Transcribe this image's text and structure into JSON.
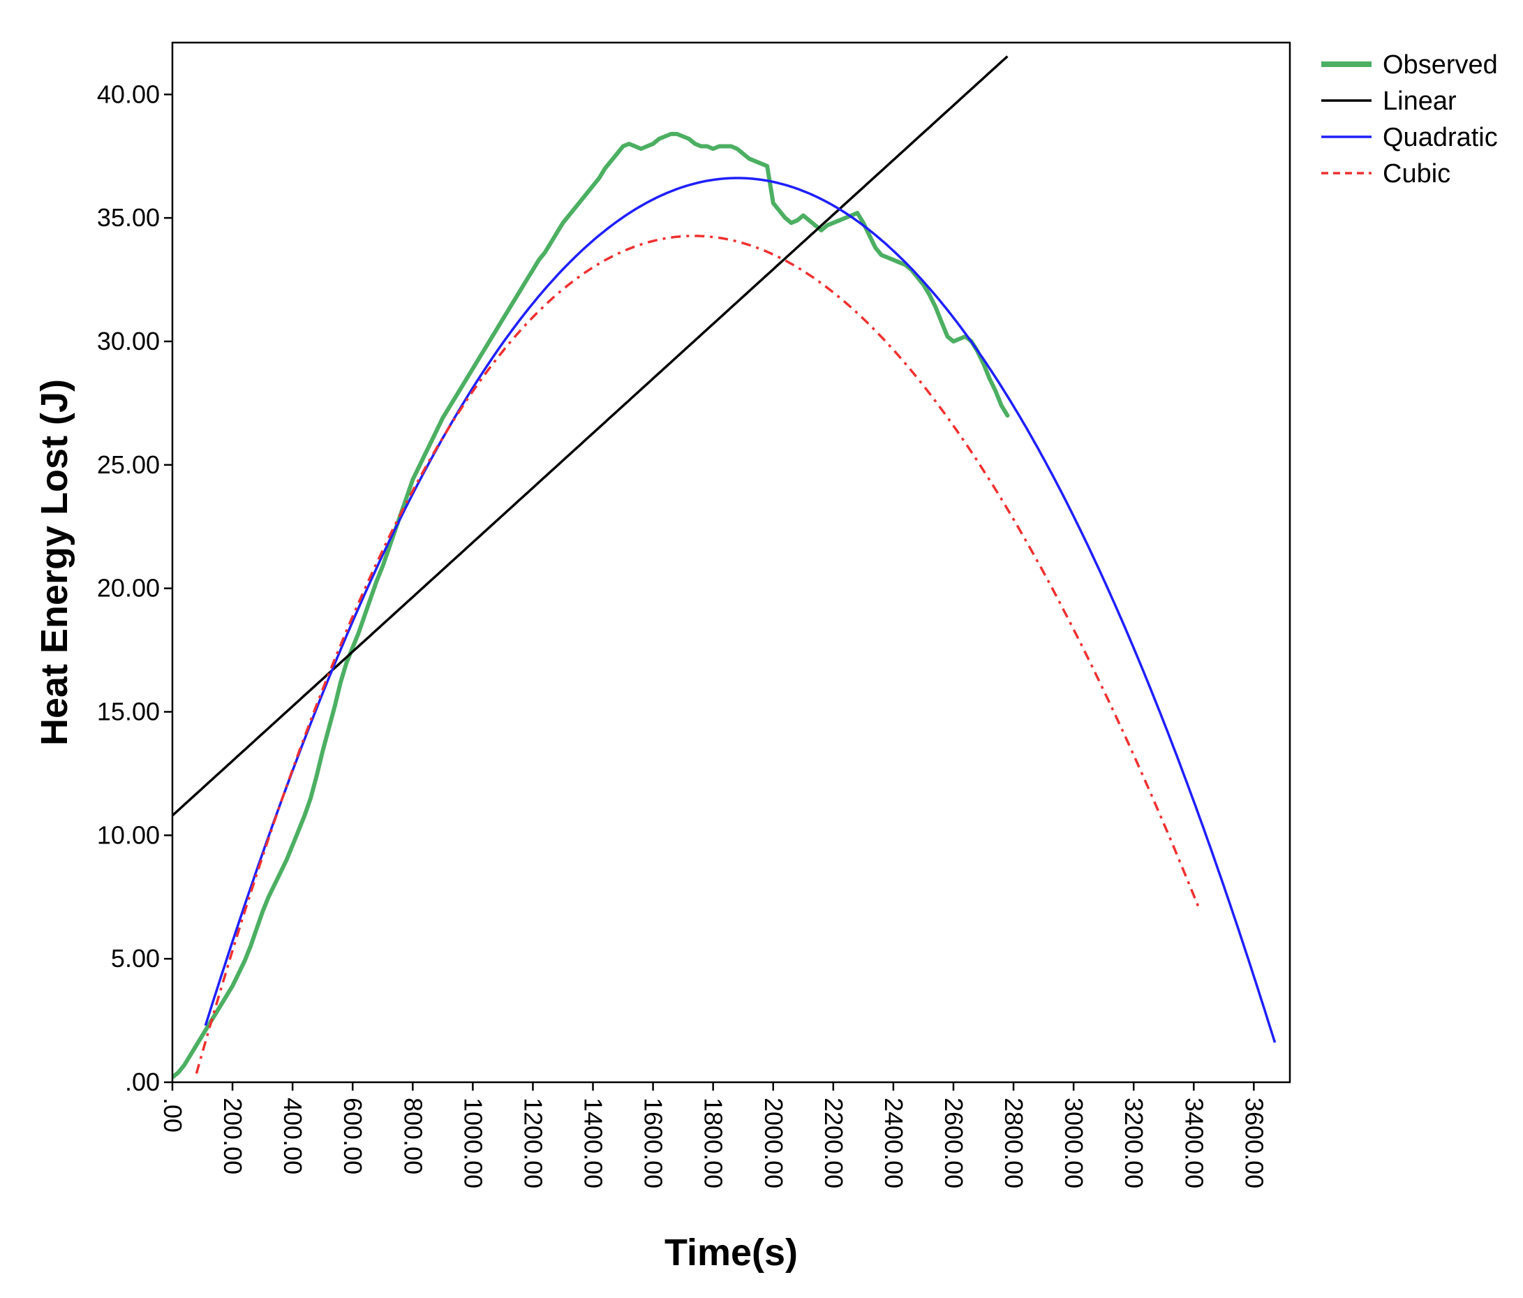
{
  "chart_data": {
    "type": "line",
    "title": "",
    "xlabel": "Time(s)",
    "ylabel": "Heat Energy Lost (J)",
    "xlim": [
      0,
      3720
    ],
    "ylim": [
      0,
      42.1
    ],
    "x_ticks": [
      {
        "value": 0,
        "label": ".00"
      },
      {
        "value": 200,
        "label": "200.00"
      },
      {
        "value": 400,
        "label": "400.00"
      },
      {
        "value": 600,
        "label": "600.00"
      },
      {
        "value": 800,
        "label": "800.00"
      },
      {
        "value": 1000,
        "label": "1000.00"
      },
      {
        "value": 1200,
        "label": "1200.00"
      },
      {
        "value": 1400,
        "label": "1400.00"
      },
      {
        "value": 1600,
        "label": "1600.00"
      },
      {
        "value": 1800,
        "label": "1800.00"
      },
      {
        "value": 2000,
        "label": "2000.00"
      },
      {
        "value": 2200,
        "label": "2200.00"
      },
      {
        "value": 2400,
        "label": "2400.00"
      },
      {
        "value": 2600,
        "label": "2600.00"
      },
      {
        "value": 2800,
        "label": "2800.00"
      },
      {
        "value": 3000,
        "label": "3000.00"
      },
      {
        "value": 3200,
        "label": "3200.00"
      },
      {
        "value": 3400,
        "label": "3400.00"
      },
      {
        "value": 3600,
        "label": "3600.00"
      }
    ],
    "y_ticks": [
      {
        "value": 0,
        "label": ".00"
      },
      {
        "value": 5,
        "label": "5.00"
      },
      {
        "value": 10,
        "label": "10.00"
      },
      {
        "value": 15,
        "label": "15.00"
      },
      {
        "value": 20,
        "label": "20.00"
      },
      {
        "value": 25,
        "label": "25.00"
      },
      {
        "value": 30,
        "label": "30.00"
      },
      {
        "value": 35,
        "label": "35.00"
      },
      {
        "value": 40,
        "label": "40.00"
      }
    ],
    "legend_position": "right-top",
    "grid": false,
    "series": [
      {
        "name": "Observed",
        "kind": "observed",
        "color": "#4caf62",
        "x": [
          0,
          20,
          40,
          60,
          80,
          100,
          120,
          140,
          160,
          180,
          200,
          220,
          240,
          260,
          280,
          300,
          320,
          340,
          360,
          380,
          400,
          420,
          440,
          460,
          480,
          500,
          520,
          540,
          560,
          580,
          600,
          620,
          640,
          660,
          680,
          700,
          720,
          740,
          760,
          780,
          800,
          820,
          840,
          860,
          880,
          900,
          920,
          940,
          960,
          980,
          1000,
          1020,
          1040,
          1060,
          1080,
          1100,
          1120,
          1140,
          1160,
          1180,
          1200,
          1220,
          1240,
          1260,
          1280,
          1300,
          1320,
          1340,
          1360,
          1380,
          1400,
          1420,
          1440,
          1460,
          1480,
          1500,
          1520,
          1540,
          1560,
          1580,
          1600,
          1620,
          1640,
          1660,
          1680,
          1700,
          1720,
          1740,
          1760,
          1780,
          1800,
          1820,
          1840,
          1860,
          1880,
          1900,
          1920,
          1940,
          1960,
          1980,
          2000,
          2020,
          2040,
          2060,
          2080,
          2100,
          2120,
          2140,
          2160,
          2180,
          2200,
          2220,
          2240,
          2260,
          2280,
          2300,
          2320,
          2340,
          2360,
          2380,
          2400,
          2420,
          2440,
          2460,
          2480,
          2500,
          2520,
          2540,
          2560,
          2580,
          2600,
          2620,
          2640,
          2660,
          2680,
          2700,
          2720,
          2740,
          2760,
          2780
        ],
        "y": [
          0.2,
          0.4,
          0.7,
          1.1,
          1.5,
          1.9,
          2.3,
          2.7,
          3.1,
          3.5,
          3.9,
          4.4,
          4.9,
          5.5,
          6.2,
          6.9,
          7.5,
          8.0,
          8.5,
          9.0,
          9.6,
          10.2,
          10.8,
          11.5,
          12.4,
          13.4,
          14.3,
          15.2,
          16.2,
          17.0,
          17.6,
          18.2,
          18.9,
          19.6,
          20.3,
          20.9,
          21.6,
          22.3,
          23.0,
          23.7,
          24.4,
          24.9,
          25.4,
          25.9,
          26.4,
          26.9,
          27.3,
          27.7,
          28.1,
          28.5,
          28.9,
          29.3,
          29.7,
          30.1,
          30.5,
          30.9,
          31.3,
          31.7,
          32.1,
          32.5,
          32.9,
          33.3,
          33.6,
          34.0,
          34.4,
          34.8,
          35.1,
          35.4,
          35.7,
          36.0,
          36.3,
          36.6,
          37.0,
          37.3,
          37.6,
          37.9,
          38.0,
          37.9,
          37.8,
          37.9,
          38.0,
          38.2,
          38.3,
          38.4,
          38.4,
          38.3,
          38.2,
          38.0,
          37.9,
          37.9,
          37.8,
          37.9,
          37.9,
          37.9,
          37.8,
          37.6,
          37.4,
          37.3,
          37.2,
          37.1,
          35.6,
          35.3,
          35.0,
          34.8,
          34.9,
          35.1,
          34.9,
          34.7,
          34.5,
          34.7,
          34.8,
          34.9,
          35.0,
          35.1,
          35.2,
          34.8,
          34.3,
          33.8,
          33.5,
          33.4,
          33.3,
          33.2,
          33.1,
          32.9,
          32.6,
          32.3,
          31.9,
          31.4,
          30.8,
          30.2,
          30.0,
          30.1,
          30.2,
          30.0,
          29.6,
          29.1,
          28.5,
          28.0,
          27.4,
          27.0
        ]
      },
      {
        "name": "Linear",
        "kind": "polynomial",
        "color": "#000000",
        "dash": "",
        "coefficients": [
          10.8,
          0.01106
        ],
        "x_range": [
          0,
          2780
        ]
      },
      {
        "name": "Quadratic",
        "kind": "polynomial",
        "color": "#1f1fff",
        "dash": "",
        "coefficients": [
          -2.1,
          0.04116,
          -1.094e-05
        ],
        "x_range": [
          110,
          3670
        ]
      },
      {
        "name": "Cubic",
        "kind": "polynomial",
        "color": "#f03030",
        "dash": "14,8,4,8",
        "coefficients": [
          -3.2,
          0.04564,
          -1.528e-05,
          8.2e-10
        ],
        "x_range": [
          80,
          3420
        ]
      }
    ]
  }
}
